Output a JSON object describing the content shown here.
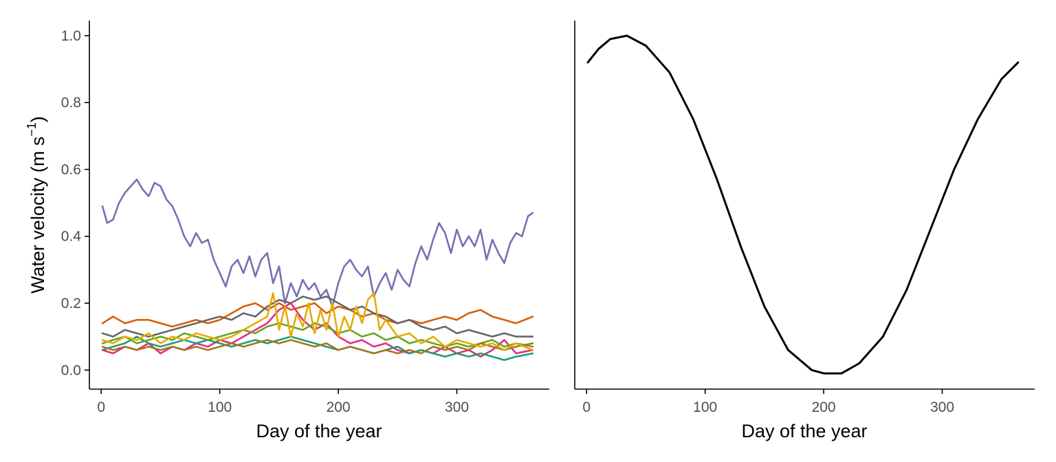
{
  "chart_data": [
    {
      "type": "line",
      "title": "",
      "xlabel": "Day of the year",
      "ylabel_main": "Water velocity (m s",
      "ylabel_sup": "−1",
      "ylabel_close": ")",
      "xlim": [
        -10,
        378
      ],
      "ylim": [
        -0.057,
        1.045
      ],
      "xticks": [
        "0",
        "100",
        "200",
        "300"
      ],
      "yticks": [
        "0.0",
        "0.2",
        "0.4",
        "0.6",
        "0.8",
        "1.0"
      ],
      "grid": false,
      "legend": "none",
      "series": [
        {
          "color": "#7570b3",
          "x": [
            1,
            5,
            10,
            15,
            20,
            25,
            30,
            35,
            40,
            45,
            50,
            55,
            60,
            65,
            70,
            75,
            80,
            85,
            90,
            95,
            100,
            105,
            110,
            115,
            120,
            125,
            130,
            135,
            140,
            145,
            150,
            155,
            160,
            165,
            170,
            175,
            180,
            185,
            190,
            195,
            200,
            205,
            210,
            215,
            220,
            225,
            230,
            235,
            240,
            245,
            250,
            255,
            260,
            265,
            270,
            275,
            280,
            285,
            290,
            295,
            300,
            305,
            310,
            315,
            320,
            325,
            330,
            335,
            340,
            345,
            350,
            355,
            360,
            364
          ],
          "values": [
            0.49,
            0.44,
            0.45,
            0.5,
            0.53,
            0.55,
            0.57,
            0.54,
            0.52,
            0.56,
            0.55,
            0.51,
            0.49,
            0.45,
            0.4,
            0.37,
            0.41,
            0.38,
            0.39,
            0.33,
            0.29,
            0.25,
            0.31,
            0.33,
            0.29,
            0.34,
            0.28,
            0.33,
            0.35,
            0.26,
            0.31,
            0.2,
            0.26,
            0.22,
            0.27,
            0.24,
            0.26,
            0.22,
            0.24,
            0.19,
            0.26,
            0.31,
            0.33,
            0.3,
            0.28,
            0.31,
            0.22,
            0.26,
            0.29,
            0.24,
            0.3,
            0.27,
            0.25,
            0.32,
            0.37,
            0.33,
            0.39,
            0.44,
            0.41,
            0.35,
            0.42,
            0.37,
            0.4,
            0.37,
            0.42,
            0.33,
            0.39,
            0.35,
            0.32,
            0.38,
            0.41,
            0.4,
            0.46,
            0.47
          ]
        },
        {
          "color": "#d95f02",
          "x": [
            1,
            10,
            20,
            30,
            40,
            50,
            60,
            70,
            80,
            90,
            100,
            110,
            120,
            130,
            140,
            150,
            160,
            170,
            180,
            190,
            200,
            210,
            220,
            230,
            240,
            250,
            260,
            270,
            280,
            290,
            300,
            310,
            320,
            330,
            340,
            350,
            364
          ],
          "values": [
            0.14,
            0.16,
            0.14,
            0.15,
            0.15,
            0.14,
            0.13,
            0.14,
            0.15,
            0.14,
            0.15,
            0.17,
            0.19,
            0.2,
            0.18,
            0.2,
            0.18,
            0.19,
            0.2,
            0.17,
            0.19,
            0.18,
            0.16,
            0.17,
            0.15,
            0.14,
            0.15,
            0.14,
            0.15,
            0.16,
            0.15,
            0.17,
            0.18,
            0.16,
            0.15,
            0.14,
            0.16
          ]
        },
        {
          "color": "#666666",
          "x": [
            1,
            10,
            20,
            30,
            40,
            50,
            60,
            70,
            80,
            90,
            100,
            110,
            120,
            130,
            140,
            150,
            160,
            170,
            180,
            190,
            200,
            210,
            220,
            230,
            240,
            250,
            260,
            270,
            280,
            290,
            300,
            310,
            320,
            330,
            340,
            350,
            364
          ],
          "values": [
            0.11,
            0.1,
            0.12,
            0.11,
            0.1,
            0.11,
            0.12,
            0.13,
            0.14,
            0.15,
            0.16,
            0.15,
            0.17,
            0.16,
            0.19,
            0.21,
            0.2,
            0.22,
            0.21,
            0.22,
            0.2,
            0.18,
            0.19,
            0.17,
            0.16,
            0.14,
            0.15,
            0.13,
            0.12,
            0.13,
            0.11,
            0.12,
            0.11,
            0.1,
            0.11,
            0.1,
            0.1
          ]
        },
        {
          "color": "#e7298a",
          "x": [
            1,
            10,
            20,
            30,
            40,
            50,
            60,
            70,
            80,
            90,
            100,
            110,
            120,
            130,
            140,
            150,
            160,
            170,
            180,
            190,
            200,
            210,
            220,
            230,
            240,
            250,
            260,
            270,
            280,
            290,
            300,
            310,
            320,
            330,
            340,
            350,
            364
          ],
          "values": [
            0.06,
            0.05,
            0.07,
            0.06,
            0.08,
            0.05,
            0.07,
            0.06,
            0.08,
            0.07,
            0.09,
            0.08,
            0.1,
            0.12,
            0.14,
            0.18,
            0.2,
            0.15,
            0.12,
            0.14,
            0.1,
            0.08,
            0.09,
            0.07,
            0.08,
            0.06,
            0.05,
            0.06,
            0.05,
            0.07,
            0.05,
            0.06,
            0.04,
            0.06,
            0.09,
            0.05,
            0.06
          ]
        },
        {
          "color": "#1b9e77",
          "x": [
            1,
            10,
            20,
            30,
            40,
            50,
            60,
            70,
            80,
            90,
            100,
            110,
            120,
            130,
            140,
            150,
            160,
            170,
            180,
            190,
            200,
            210,
            220,
            230,
            240,
            250,
            260,
            270,
            280,
            290,
            300,
            310,
            320,
            330,
            340,
            350,
            364
          ],
          "values": [
            0.06,
            0.07,
            0.08,
            0.1,
            0.08,
            0.07,
            0.08,
            0.09,
            0.08,
            0.09,
            0.08,
            0.07,
            0.08,
            0.09,
            0.08,
            0.09,
            0.1,
            0.09,
            0.08,
            0.07,
            0.06,
            0.07,
            0.06,
            0.05,
            0.06,
            0.07,
            0.05,
            0.06,
            0.05,
            0.04,
            0.05,
            0.04,
            0.05,
            0.04,
            0.03,
            0.04,
            0.05
          ]
        },
        {
          "color": "#66a61e",
          "x": [
            1,
            10,
            20,
            30,
            40,
            50,
            60,
            70,
            80,
            90,
            100,
            110,
            120,
            130,
            140,
            150,
            160,
            170,
            180,
            190,
            200,
            210,
            220,
            230,
            240,
            250,
            260,
            270,
            280,
            290,
            300,
            310,
            320,
            330,
            340,
            350,
            364
          ],
          "values": [
            0.08,
            0.09,
            0.1,
            0.08,
            0.09,
            0.1,
            0.09,
            0.11,
            0.1,
            0.09,
            0.1,
            0.11,
            0.12,
            0.11,
            0.13,
            0.14,
            0.13,
            0.12,
            0.14,
            0.13,
            0.11,
            0.12,
            0.1,
            0.11,
            0.09,
            0.1,
            0.08,
            0.09,
            0.08,
            0.07,
            0.08,
            0.07,
            0.08,
            0.09,
            0.07,
            0.08,
            0.07
          ]
        },
        {
          "color": "#a6761d",
          "x": [
            1,
            10,
            20,
            30,
            40,
            50,
            60,
            70,
            80,
            90,
            100,
            110,
            120,
            130,
            140,
            150,
            160,
            170,
            180,
            190,
            200,
            210,
            220,
            230,
            240,
            250,
            260,
            270,
            280,
            290,
            300,
            310,
            320,
            330,
            340,
            350,
            364
          ],
          "values": [
            0.07,
            0.06,
            0.07,
            0.06,
            0.07,
            0.06,
            0.07,
            0.06,
            0.07,
            0.06,
            0.07,
            0.08,
            0.07,
            0.08,
            0.09,
            0.08,
            0.09,
            0.08,
            0.07,
            0.08,
            0.06,
            0.07,
            0.06,
            0.05,
            0.06,
            0.05,
            0.06,
            0.05,
            0.07,
            0.06,
            0.07,
            0.06,
            0.08,
            0.07,
            0.06,
            0.07,
            0.08
          ]
        },
        {
          "color": "#e6ab02",
          "x": [
            1,
            10,
            20,
            30,
            40,
            50,
            60,
            70,
            80,
            90,
            100,
            110,
            120,
            130,
            140,
            145,
            150,
            155,
            160,
            165,
            170,
            175,
            180,
            185,
            190,
            195,
            200,
            205,
            210,
            215,
            220,
            225,
            230,
            235,
            240,
            250,
            260,
            270,
            280,
            290,
            300,
            310,
            320,
            330,
            340,
            350,
            364
          ],
          "values": [
            0.09,
            0.08,
            0.1,
            0.09,
            0.11,
            0.08,
            0.1,
            0.09,
            0.11,
            0.1,
            0.09,
            0.1,
            0.12,
            0.14,
            0.16,
            0.23,
            0.12,
            0.19,
            0.1,
            0.17,
            0.13,
            0.2,
            0.11,
            0.18,
            0.12,
            0.2,
            0.1,
            0.16,
            0.12,
            0.19,
            0.14,
            0.21,
            0.23,
            0.12,
            0.15,
            0.1,
            0.11,
            0.08,
            0.1,
            0.07,
            0.09,
            0.08,
            0.07,
            0.08,
            0.06,
            0.08,
            0.06
          ]
        }
      ]
    },
    {
      "type": "line",
      "title": "",
      "xlabel": "Day of the year",
      "ylabel": "",
      "xlim": [
        -10,
        378
      ],
      "ylim": [
        -0.057,
        1.045
      ],
      "xticks": [
        "0",
        "100",
        "200",
        "300"
      ],
      "yticks": [],
      "grid": false,
      "legend": "none",
      "series": [
        {
          "color": "#000000",
          "x": [
            1,
            10,
            20,
            34,
            50,
            70,
            90,
            110,
            130,
            150,
            170,
            190,
            200,
            215,
            230,
            250,
            270,
            290,
            310,
            330,
            350,
            364
          ],
          "values": [
            0.92,
            0.96,
            0.99,
            1.0,
            0.97,
            0.89,
            0.75,
            0.57,
            0.37,
            0.19,
            0.06,
            0.0,
            -0.01,
            -0.01,
            0.02,
            0.1,
            0.24,
            0.42,
            0.6,
            0.75,
            0.87,
            0.92
          ]
        }
      ]
    }
  ]
}
